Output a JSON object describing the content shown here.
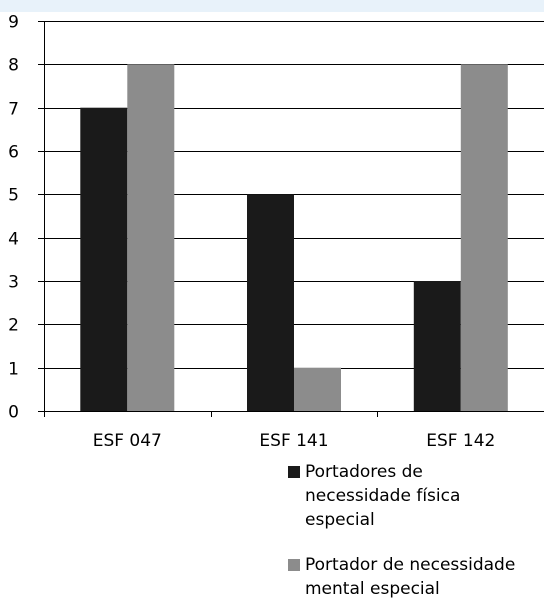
{
  "chart_data": {
    "type": "bar",
    "categories": [
      "ESF 047",
      "ESF 141",
      "ESF 142"
    ],
    "series": [
      {
        "name": "Portadores de necessidade física especial",
        "values": [
          7,
          5,
          3
        ],
        "color": "#1a1a1a"
      },
      {
        "name": "Portador de necessidade mental especial",
        "values": [
          8,
          1,
          8
        ],
        "color": "#8c8c8c"
      }
    ],
    "ylim": [
      0,
      9
    ],
    "yticks": [
      "0",
      "1",
      "2",
      "3",
      "4",
      "5",
      "6",
      "7",
      "8",
      "9"
    ],
    "grid": true,
    "legend_position": "bottom-right",
    "title": "",
    "xlabel": "",
    "ylabel": ""
  },
  "legend": {
    "entry0_text": "Portadores de\nnecessidade física\nespecial",
    "entry1_text": "Portador de necessidade\nmental especial"
  }
}
